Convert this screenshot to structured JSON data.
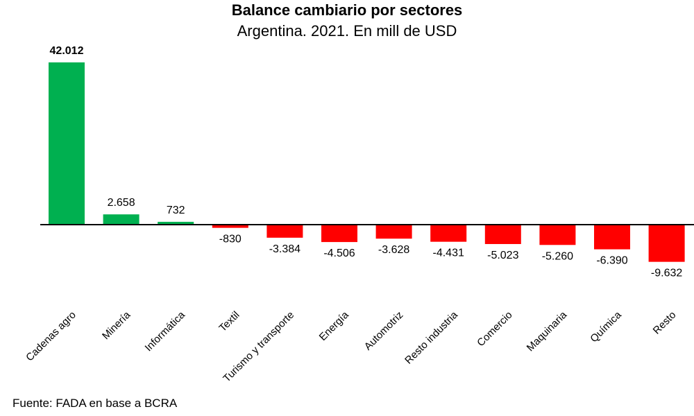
{
  "chart_data": {
    "type": "bar",
    "title": "Balance cambiario por sectores",
    "subtitle": "Argentina. 2021. En mill de USD",
    "xlabel": "",
    "ylabel": "",
    "categories": [
      "Cadenas agro",
      "Minería",
      "Informática",
      "Textil",
      "Turismo y transporte",
      "Energía",
      "Automotriz",
      "Resto industria",
      "Comercio",
      "Maquinaria",
      "Química",
      "Resto"
    ],
    "values": [
      42012,
      2658,
      732,
      -830,
      -3384,
      -4506,
      -3628,
      -4431,
      -5023,
      -5260,
      -6390,
      -9632
    ],
    "value_labels": [
      "42.012",
      "2.658",
      "732",
      "-830",
      "-3.384",
      "-4.506",
      "-3.628",
      "-4.431",
      "-5.023",
      "-5.260",
      "-6.390",
      "-9.632"
    ],
    "ylim": [
      -10000,
      43000
    ],
    "grid": false,
    "legend": "none",
    "colors": {
      "positive": "#00b050",
      "negative": "#ff0000",
      "axis": "#000000"
    },
    "source": "Fuente: FADA en base a BCRA"
  }
}
